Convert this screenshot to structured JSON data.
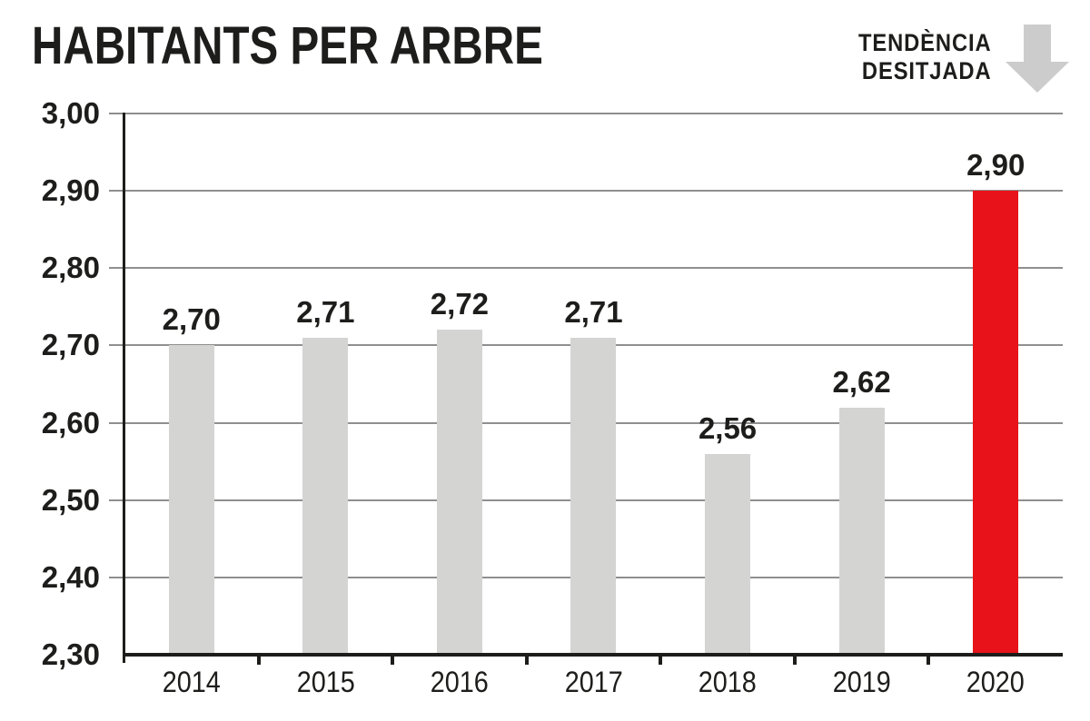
{
  "header": {
    "title": "HABITANTS PER ARBRE",
    "trend_line1": "TENDÈNCIA",
    "trend_line2": "DESITJADA",
    "trend_icon": "down-arrow"
  },
  "colors": {
    "background": "#ffffff",
    "text": "#1d1d1b",
    "axis": "#1d1d1b",
    "grid_line": "#8f8f8f",
    "bar_default": "#d4d4d3",
    "bar_highlight": "#e8131a",
    "arrow": "#cccccc"
  },
  "chart_data": {
    "type": "bar",
    "title": "HABITANTS PER ARBRE",
    "categories": [
      "2014",
      "2015",
      "2016",
      "2017",
      "2018",
      "2019",
      "2020"
    ],
    "values": [
      2.7,
      2.71,
      2.72,
      2.71,
      2.56,
      2.62,
      2.9
    ],
    "value_labels": [
      "2,70",
      "2,71",
      "2,72",
      "2,71",
      "2,56",
      "2,62",
      "2,90"
    ],
    "highlight_index": 6,
    "ylim": [
      2.3,
      3.0
    ],
    "y_tick_step": 0.1,
    "y_tick_labels": [
      "3,00",
      "2,90",
      "2,80",
      "2,70",
      "2,60",
      "2,50",
      "2,40",
      "2,30"
    ],
    "y_tick_values": [
      3.0,
      2.9,
      2.8,
      2.7,
      2.6,
      2.5,
      2.4,
      2.3
    ],
    "grid": "horizontal",
    "xlabel": "",
    "ylabel": "",
    "annotation": {
      "text": "TENDÈNCIA DESITJADA",
      "icon": "down-arrow",
      "position": "top-right"
    }
  }
}
